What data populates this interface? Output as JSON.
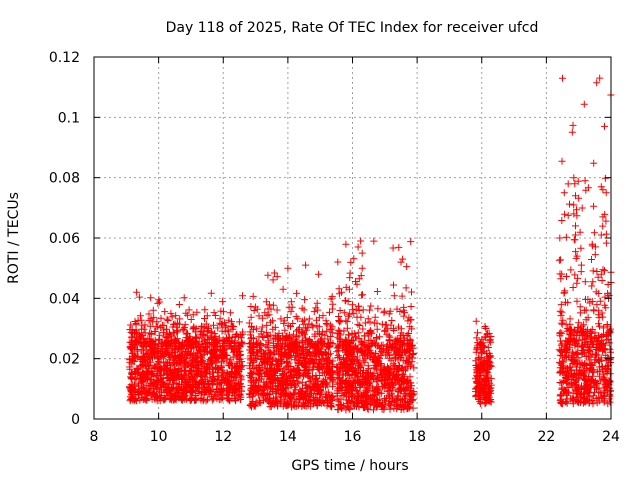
{
  "chart_data": {
    "type": "scatter",
    "title": "Day 118 of 2025, Rate Of TEC Index for receiver ufcd",
    "xlabel": "GPS time / hours",
    "ylabel": "ROTI / TECUs",
    "xlim": [
      8,
      24
    ],
    "ylim": [
      0,
      0.12
    ],
    "xticks": [
      8,
      10,
      12,
      14,
      16,
      18,
      20,
      22,
      24
    ],
    "yticks": [
      0,
      0.02,
      0.04,
      0.06,
      0.08,
      0.1,
      0.12
    ],
    "xtick_labels": [
      "8",
      "10",
      "12",
      "14",
      "16",
      "18",
      "20",
      "22",
      "24"
    ],
    "ytick_labels": [
      "0",
      "0.02",
      "0.04",
      "0.06",
      "0.08",
      "0.1",
      "0.12"
    ],
    "grid": true,
    "marker": "+",
    "series": [
      {
        "name": "ROTI",
        "color": "#ff0000",
        "segments": [
          {
            "x_start": 9.1,
            "x_end": 12.6,
            "y_typical_min": 0.006,
            "y_typical_max": 0.025,
            "y_peak": 0.042
          },
          {
            "x_start": 12.8,
            "x_end": 15.4,
            "y_typical_min": 0.004,
            "y_typical_max": 0.025,
            "y_peak": 0.051
          },
          {
            "x_start": 15.5,
            "x_end": 17.9,
            "y_typical_min": 0.003,
            "y_typical_max": 0.025,
            "y_peak": 0.059
          },
          {
            "x_start": 19.8,
            "x_end": 20.3,
            "y_typical_min": 0.005,
            "y_typical_max": 0.022,
            "y_peak": 0.038
          },
          {
            "x_start": 22.4,
            "x_end": 24.0,
            "y_typical_min": 0.005,
            "y_typical_max": 0.03,
            "y_peak": 0.113
          }
        ],
        "notable_points": [
          {
            "x": 16.25,
            "y": 0.059
          },
          {
            "x": 16.3,
            "y": 0.055
          },
          {
            "x": 16.3,
            "y": 0.05
          },
          {
            "x": 17.55,
            "y": 0.053
          },
          {
            "x": 17.5,
            "y": 0.052
          },
          {
            "x": 14.95,
            "y": 0.048
          },
          {
            "x": 14.55,
            "y": 0.051
          },
          {
            "x": 14.0,
            "y": 0.05
          },
          {
            "x": 22.85,
            "y": 0.08
          },
          {
            "x": 22.88,
            "y": 0.078
          },
          {
            "x": 22.9,
            "y": 0.074
          },
          {
            "x": 22.85,
            "y": 0.068
          },
          {
            "x": 22.9,
            "y": 0.064
          },
          {
            "x": 22.9,
            "y": 0.061
          },
          {
            "x": 22.95,
            "y": 0.054
          },
          {
            "x": 23.65,
            "y": 0.113
          },
          {
            "x": 23.8,
            "y": 0.097
          },
          {
            "x": 23.7,
            "y": 0.077
          },
          {
            "x": 23.75,
            "y": 0.076
          },
          {
            "x": 23.85,
            "y": 0.075
          },
          {
            "x": 23.75,
            "y": 0.067
          },
          {
            "x": 23.7,
            "y": 0.048
          },
          {
            "x": 23.6,
            "y": 0.047
          }
        ]
      }
    ]
  }
}
